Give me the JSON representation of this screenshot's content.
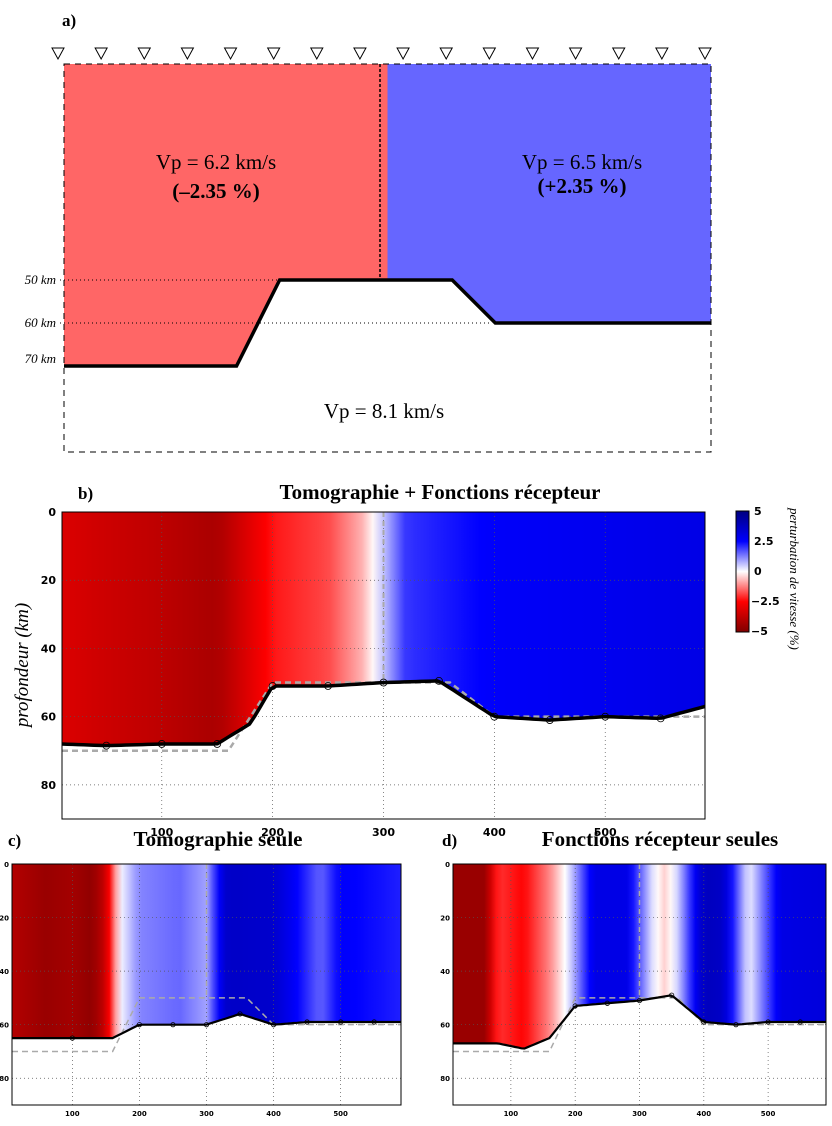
{
  "panel_a": {
    "label": "a)",
    "left_block": {
      "vp_text": "Vp = 6.2 km/s",
      "pert_text": "(–2.35 %)",
      "color": "#ff6666"
    },
    "right_block": {
      "vp_text": "Vp = 6.5 km/s",
      "pert_text": "(+2.35 %)",
      "color": "#6666ff"
    },
    "mantle_text": "Vp = 8.1 km/s",
    "depth_labels": [
      "50 km",
      "60 km",
      "70 km"
    ],
    "station_count": 16
  },
  "panel_b": {
    "label": "b)",
    "title": "Tomographie + Fonctions récepteur",
    "ylabel": "profondeur (km)",
    "xticks": [
      "100",
      "200",
      "300",
      "400",
      "500"
    ],
    "yticks": [
      "0",
      "20",
      "40",
      "60",
      "80"
    ],
    "colorbar_label": "perturbation de vitesse (%)",
    "colorbar_ticks": [
      "5",
      "2.5",
      "0",
      "−2.5",
      "−5"
    ]
  },
  "panel_c": {
    "label": "c)",
    "title": "Tomographie seule",
    "xticks": [
      "100",
      "200",
      "300",
      "400",
      "500"
    ],
    "yticks": [
      "0",
      "20",
      "40",
      "60",
      "80"
    ]
  },
  "panel_d": {
    "label": "d)",
    "title": "Fonctions récepteur seules",
    "xticks": [
      "100",
      "200",
      "300",
      "400",
      "500"
    ],
    "yticks": [
      "0",
      "20",
      "40",
      "60",
      "80"
    ]
  },
  "chart_data": [
    {
      "type": "heatmap",
      "panel": "a",
      "x_range": [
        0,
        600
      ],
      "y_range": [
        0,
        90
      ],
      "true_moho": {
        "x": [
          0,
          160,
          200,
          360,
          400,
          600
        ],
        "depth": [
          70,
          70,
          50,
          50,
          60,
          60
        ]
      },
      "vertical_boundary_x": 300
    },
    {
      "type": "heatmap",
      "panel": "b",
      "x_range": [
        10,
        590
      ],
      "y_range": [
        0,
        90
      ],
      "color_range": [
        -5,
        5
      ],
      "velocity_perturbation": {
        "x": [
          10,
          50,
          100,
          150,
          200,
          250,
          280,
          300,
          320,
          400,
          500,
          590
        ],
        "values": [
          -3.2,
          -3.5,
          -3.8,
          -4.2,
          -2.3,
          -1.8,
          -0.8,
          0.6,
          2.0,
          2.6,
          2.8,
          3.0
        ]
      },
      "estimated_moho": {
        "x": [
          10,
          50,
          100,
          150,
          180,
          200,
          250,
          300,
          350,
          400,
          450,
          500,
          550,
          590
        ],
        "depth": [
          68,
          68.5,
          68,
          68,
          62,
          51,
          51,
          50,
          49.5,
          60,
          61,
          60,
          60.5,
          57
        ]
      },
      "true_moho": {
        "x": [
          10,
          160,
          200,
          360,
          400,
          590
        ],
        "depth": [
          70,
          70,
          50,
          50,
          60,
          60
        ]
      },
      "vertical_boundary_x": 300
    },
    {
      "type": "heatmap",
      "panel": "c",
      "x_range": [
        10,
        590
      ],
      "y_range": [
        0,
        90
      ],
      "velocity_perturbation": {
        "x": [
          10,
          60,
          100,
          130,
          150,
          170,
          200,
          260,
          300,
          330,
          400,
          470,
          500,
          590
        ],
        "values": [
          -4.0,
          -4.5,
          -4.3,
          -4.7,
          -3.5,
          0,
          1.2,
          1.5,
          0.9,
          3.6,
          3.5,
          1.5,
          2.6,
          2.2
        ]
      },
      "estimated_moho": {
        "x": [
          10,
          100,
          160,
          200,
          250,
          300,
          350,
          400,
          450,
          500,
          550,
          590
        ],
        "depth": [
          65,
          65,
          65,
          60,
          60,
          60,
          56,
          60,
          59,
          59,
          59,
          59
        ]
      },
      "true_moho": {
        "x": [
          10,
          160,
          200,
          360,
          400,
          590
        ],
        "depth": [
          70,
          70,
          50,
          50,
          60,
          60
        ]
      },
      "vertical_boundary_x": 300
    },
    {
      "type": "heatmap",
      "panel": "d",
      "x_range": [
        10,
        590
      ],
      "y_range": [
        0,
        90
      ],
      "velocity_perturbation": {
        "x": [
          10,
          60,
          80,
          120,
          160,
          190,
          230,
          280,
          320,
          340,
          360,
          400,
          430,
          470,
          520,
          590
        ],
        "values": [
          -4.5,
          -4.5,
          -2.0,
          -2.5,
          -1.2,
          0.3,
          3.0,
          3.0,
          0.3,
          -0.5,
          0.5,
          3.8,
          3.6,
          0.1,
          3.0,
          3.2
        ]
      },
      "estimated_moho": {
        "x": [
          10,
          80,
          120,
          160,
          200,
          250,
          300,
          350,
          400,
          450,
          500,
          550,
          590
        ],
        "depth": [
          67,
          67,
          69,
          65,
          53,
          52,
          51,
          49,
          59,
          60,
          59,
          59,
          59
        ]
      },
      "true_moho": {
        "x": [
          10,
          160,
          200,
          360,
          400,
          590
        ],
        "depth": [
          70,
          70,
          50,
          50,
          60,
          60
        ]
      },
      "vertical_boundary_x": 300
    }
  ]
}
